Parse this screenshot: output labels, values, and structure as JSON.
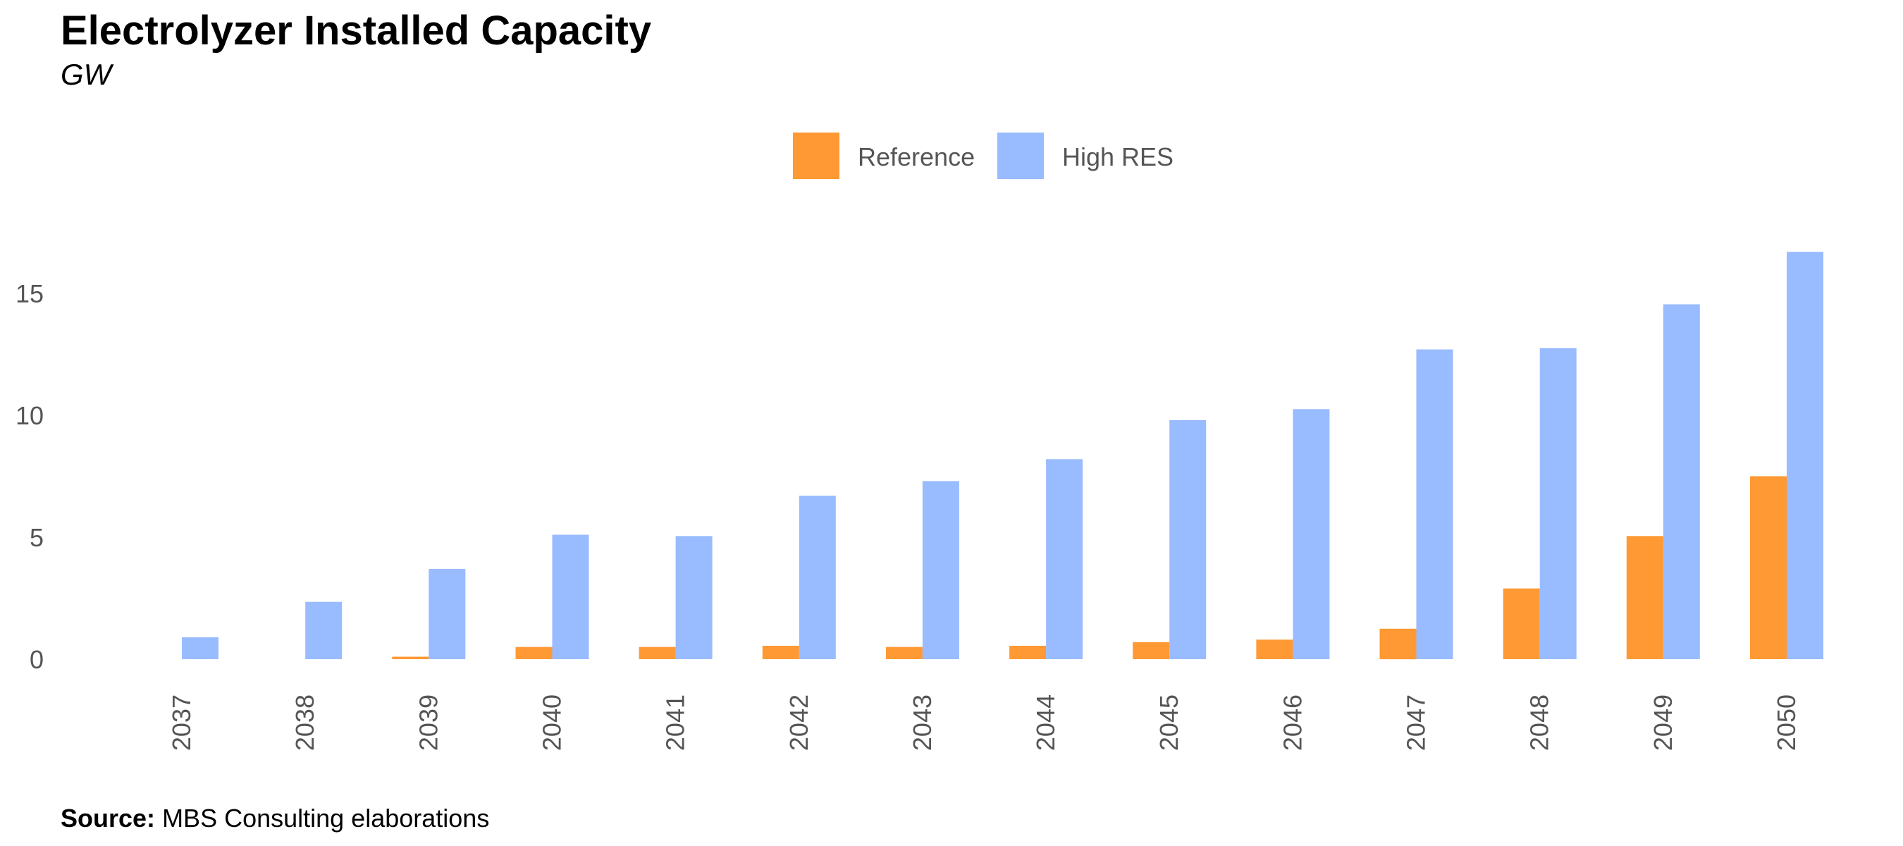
{
  "header": {
    "title": "Electrolyzer Installed Capacity",
    "subtitle": "GW"
  },
  "footer": {
    "source_label": "Source:",
    "source_text": "MBS Consulting elaborations"
  },
  "chart_data": {
    "type": "bar",
    "title": "Electrolyzer Installed Capacity",
    "subtitle": "GW",
    "xlabel": "",
    "ylabel": "",
    "categories": [
      "2037",
      "2038",
      "2039",
      "2040",
      "2041",
      "2042",
      "2043",
      "2044",
      "2045",
      "2046",
      "2047",
      "2048",
      "2049",
      "2050"
    ],
    "series": [
      {
        "name": "Reference",
        "color": "#FF9933",
        "values": [
          0,
          0,
          0.1,
          0.5,
          0.5,
          0.55,
          0.5,
          0.55,
          0.7,
          0.8,
          1.25,
          2.9,
          5.05,
          7.5
        ]
      },
      {
        "name": "High RES",
        "color": "#99BBFF",
        "values": [
          0.9,
          2.35,
          3.7,
          5.1,
          5.05,
          6.7,
          7.3,
          8.2,
          9.8,
          10.25,
          12.7,
          12.75,
          14.55,
          16.7
        ]
      }
    ],
    "y_ticks": [
      "0",
      "5",
      "10",
      "15"
    ],
    "ylim": [
      0,
      17.5
    ],
    "grid": false,
    "legend_position": "top-center",
    "x_tick_rotation": "vertical"
  }
}
